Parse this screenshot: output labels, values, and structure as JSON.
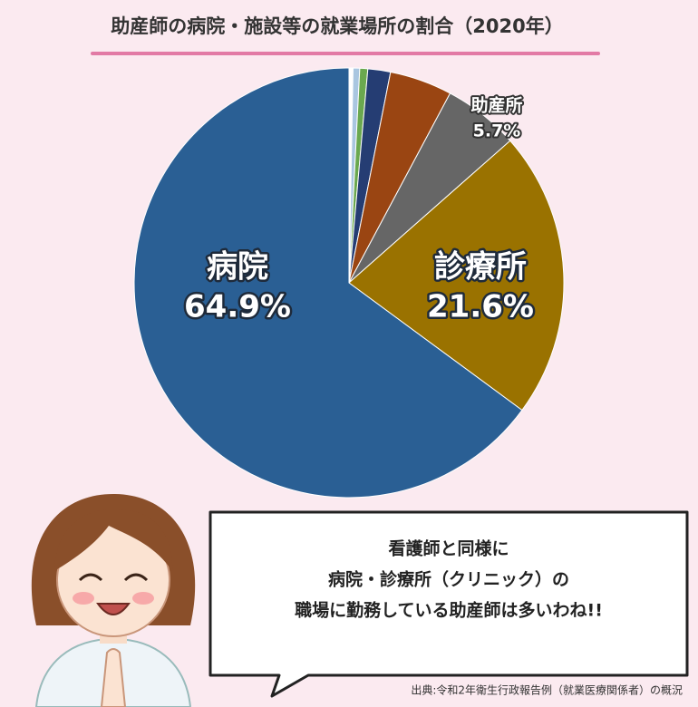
{
  "chart_data": {
    "type": "pie",
    "title": "助産師の病院・施設等の就業場所の割合（2020年）",
    "categories": [
      null,
      null,
      null,
      null,
      null,
      "助産所",
      "診療所",
      "病院"
    ],
    "values": [
      0.3,
      0.5,
      0.6,
      1.7,
      4.7,
      5.7,
      21.6,
      64.9
    ],
    "value_labels": [
      null,
      null,
      null,
      null,
      null,
      "5.7%",
      "21.6%",
      "64.9%"
    ],
    "colors": [
      "#ffffff",
      "#a9c6e0",
      "#6aa84f",
      "#253d73",
      "#9a4512",
      "#666666",
      "#9a7200",
      "#2a5f94"
    ],
    "speech": [
      "看護師と同様に",
      "病院・診療所（クリニック）の",
      "職場に勤務している助産師は多いわね!!"
    ],
    "source": "出典:令和2年衛生行政報告例（就業医療関係者）の概況"
  }
}
